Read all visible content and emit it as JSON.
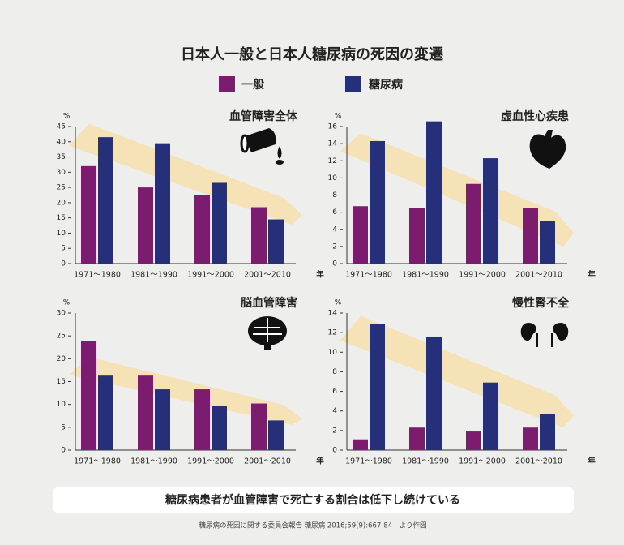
{
  "title": "日本人一般と日本人糖尿病の死因の変遷",
  "message": "糖尿病患者が血管障害で死亡する割合は低下し続けている",
  "source": "糖尿病の死因に関する委員会報告 糖尿病 2016;59(9):667-84　より作図",
  "chart_data": [
    {
      "type": "bar",
      "title": "血管障害全体",
      "ylabel": "%",
      "xlabel": "年",
      "categories": [
        "1971〜1980",
        "1981〜1990",
        "1991〜2000",
        "2001〜2010"
      ],
      "series": [
        {
          "name": "一般",
          "color": "#7b1c6e",
          "values": [
            32,
            25,
            22.5,
            18.5
          ]
        },
        {
          "name": "糖尿病",
          "color": "#26307a",
          "values": [
            41.5,
            39.5,
            26.5,
            14.5
          ]
        }
      ],
      "ylim": [
        0,
        45
      ],
      "yticks": [
        0,
        5,
        10,
        15,
        20,
        25,
        30,
        35,
        40,
        45
      ]
    },
    {
      "type": "bar",
      "title": "虚血性心疾患",
      "ylabel": "%",
      "xlabel": "年",
      "categories": [
        "1971〜1980",
        "1981〜1990",
        "1991〜2000",
        "2001〜2010"
      ],
      "series": [
        {
          "name": "一般",
          "color": "#7b1c6e",
          "values": [
            6.7,
            6.5,
            9.3,
            6.5
          ]
        },
        {
          "name": "糖尿病",
          "color": "#26307a",
          "values": [
            14.3,
            16.6,
            12.3,
            5.0
          ]
        }
      ],
      "ylim": [
        0,
        16
      ],
      "yticks": [
        0,
        2,
        4,
        6,
        8,
        10,
        12,
        14,
        16
      ]
    },
    {
      "type": "bar",
      "title": "脳血管障害",
      "ylabel": "%",
      "xlabel": "年",
      "categories": [
        "1971〜1980",
        "1981〜1990",
        "1991〜2000",
        "2001〜2010"
      ],
      "series": [
        {
          "name": "一般",
          "color": "#7b1c6e",
          "values": [
            23.8,
            16.3,
            13.3,
            10.2
          ]
        },
        {
          "name": "糖尿病",
          "color": "#26307a",
          "values": [
            16.3,
            13.3,
            9.7,
            6.5
          ]
        }
      ],
      "ylim": [
        0,
        30
      ],
      "yticks": [
        0,
        5,
        10,
        15,
        20,
        25,
        30
      ]
    },
    {
      "type": "bar",
      "title": "慢性腎不全",
      "ylabel": "%",
      "xlabel": "年",
      "categories": [
        "1971〜1980",
        "1981〜1990",
        "1991〜2000",
        "2001〜2010"
      ],
      "series": [
        {
          "name": "一般",
          "color": "#7b1c6e",
          "values": [
            1.1,
            2.3,
            1.9,
            2.3
          ]
        },
        {
          "name": "糖尿病",
          "color": "#26307a",
          "values": [
            12.9,
            11.6,
            6.9,
            3.7
          ]
        }
      ],
      "ylim": [
        0,
        14
      ],
      "yticks": [
        0,
        2,
        4,
        6,
        8,
        10,
        12,
        14
      ]
    }
  ]
}
